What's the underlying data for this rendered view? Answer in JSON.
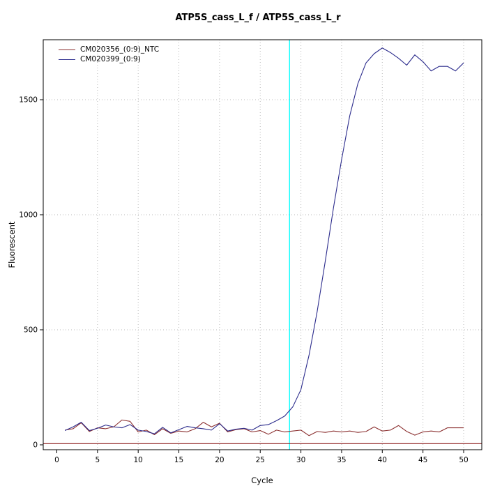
{
  "chart_data": {
    "type": "line",
    "title": "ATP5S_cass_L_f / ATP5S_cass_L_r",
    "xlabel": "Cycle",
    "ylabel": "Fluorescent",
    "xlim": [
      0,
      50
    ],
    "ylim": [
      0,
      1760
    ],
    "x_ticks": [
      0,
      5,
      10,
      15,
      20,
      25,
      30,
      35,
      40,
      45,
      50
    ],
    "y_ticks": [
      0,
      500,
      1000,
      1500
    ],
    "grid": "dotted",
    "legend_position": "top-left",
    "threshold_cycle_x": 28.6,
    "baseline_y": 5,
    "colors": {
      "grid": "#b8b8b8",
      "threshold_vline": "#00ffff",
      "baseline": "#8b1a1a",
      "axis": "#000000"
    },
    "x": [
      1,
      2,
      3,
      4,
      5,
      6,
      7,
      8,
      9,
      10,
      11,
      12,
      13,
      14,
      15,
      16,
      17,
      18,
      19,
      20,
      21,
      22,
      23,
      24,
      25,
      26,
      27,
      28,
      29,
      30,
      31,
      32,
      33,
      34,
      35,
      36,
      37,
      38,
      39,
      40,
      41,
      42,
      43,
      44,
      45,
      46,
      47,
      48,
      49,
      50
    ],
    "series": [
      {
        "name": "CM020356_(0:9)_NTC",
        "color": "#8b3030",
        "values": [
          64,
          70,
          96,
          58,
          74,
          70,
          78,
          108,
          102,
          56,
          64,
          44,
          70,
          50,
          60,
          56,
          70,
          98,
          78,
          94,
          56,
          66,
          70,
          56,
          62,
          46,
          64,
          56,
          60,
          64,
          40,
          58,
          54,
          60,
          56,
          60,
          54,
          58,
          78,
          60,
          64,
          84,
          58,
          42,
          56,
          60,
          56,
          74,
          74,
          74
        ]
      },
      {
        "name": "CM020399_(0:9)",
        "color": "#2b2b8c",
        "values": [
          62,
          78,
          98,
          62,
          72,
          86,
          78,
          74,
          88,
          64,
          58,
          48,
          76,
          52,
          66,
          80,
          74,
          70,
          64,
          92,
          60,
          68,
          72,
          64,
          84,
          88,
          105,
          125,
          165,
          240,
          390,
          580,
          800,
          1030,
          1240,
          1430,
          1570,
          1660,
          1700,
          1725,
          1705,
          1680,
          1650,
          1695,
          1665,
          1625,
          1645,
          1645,
          1625,
          1660
        ]
      }
    ]
  }
}
